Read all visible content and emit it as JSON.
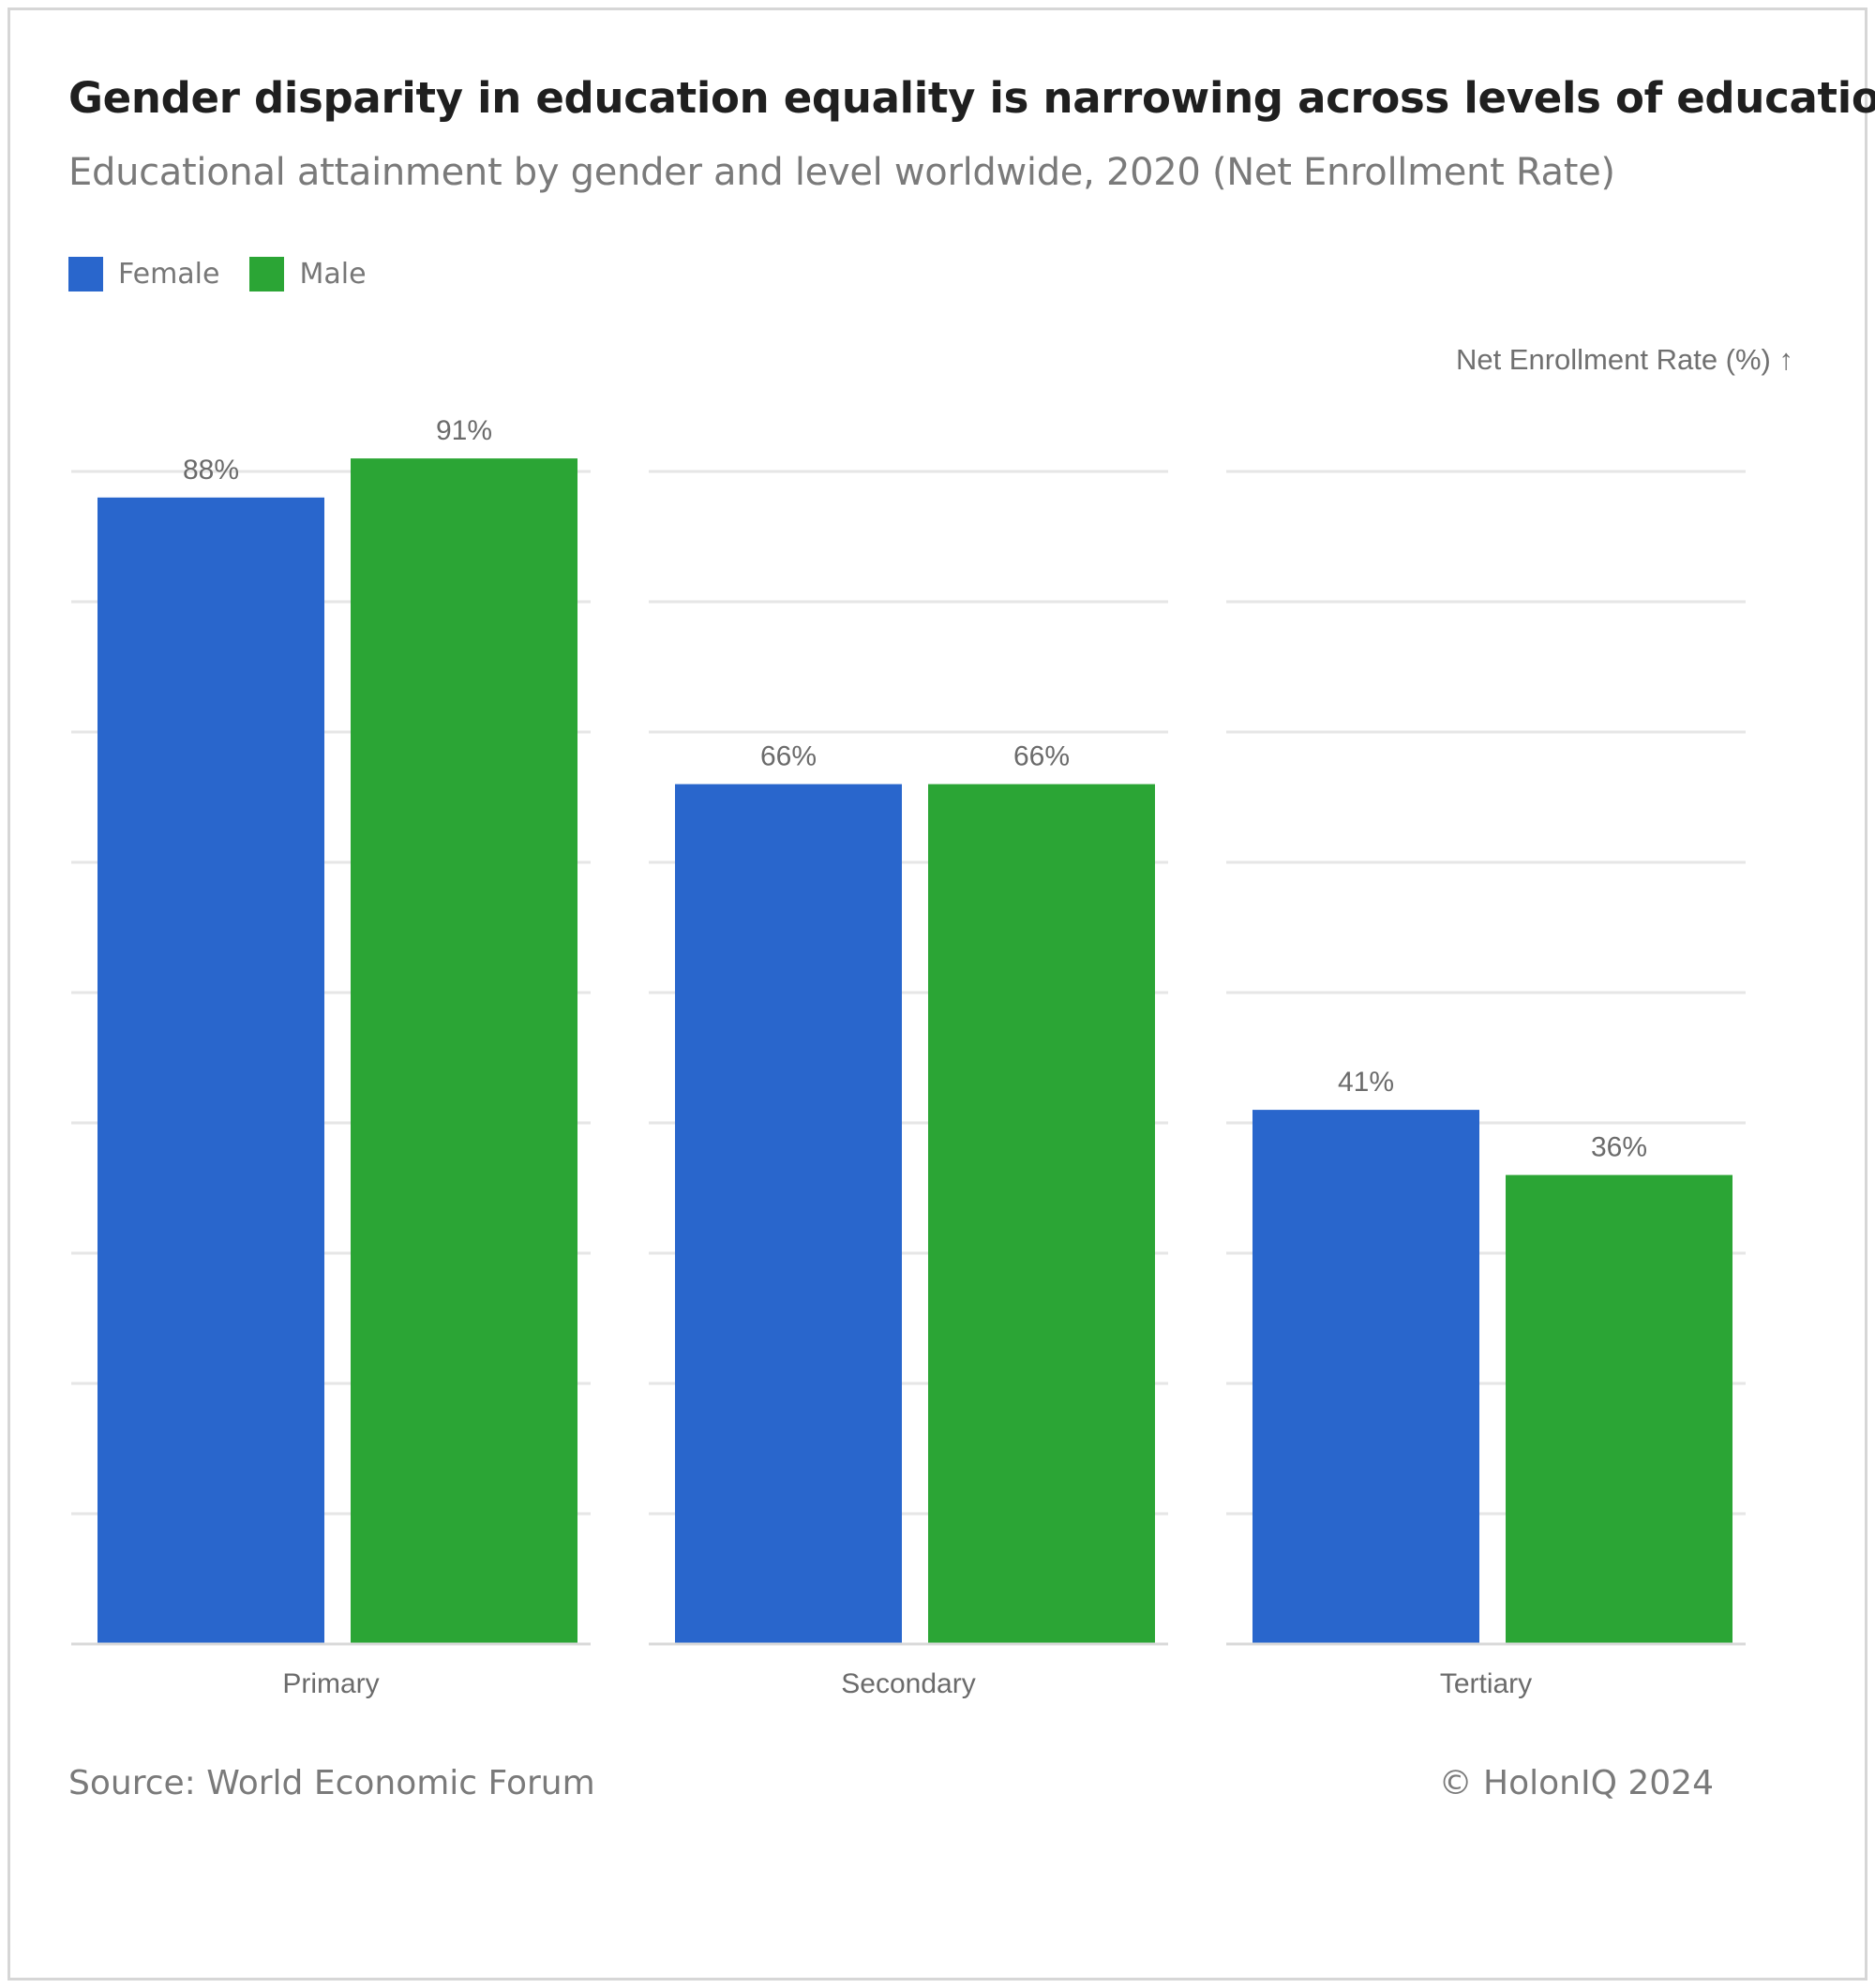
{
  "title": "Gender disparity in education equality is narrowing across levels of education",
  "subtitle": "Educational attainment by gender and level worldwide, 2020 (Net Enrollment Rate)",
  "legend": [
    {
      "label": "Female",
      "color": "#2966cc"
    },
    {
      "label": "Male",
      "color": "#2ba535"
    }
  ],
  "axis_unit_label": "Net Enrollment Rate (%) ↑",
  "source": "Source: World Economic Forum",
  "copyright": "© HolonIQ 2024",
  "chart_data": {
    "type": "bar",
    "categories": [
      "Primary",
      "Secondary",
      "Tertiary"
    ],
    "series": [
      {
        "name": "Female",
        "values": [
          88,
          66,
          41
        ],
        "labels": [
          "88%",
          "66%",
          "41%"
        ],
        "color": "#2966cc"
      },
      {
        "name": "Male",
        "values": [
          91,
          66,
          36
        ],
        "labels": [
          "91%",
          "66%",
          "36%"
        ],
        "color": "#2ba535"
      }
    ],
    "title": "Gender disparity in education equality is narrowing across levels of education",
    "subtitle": "Educational attainment by gender and level worldwide, 2020 (Net Enrollment Rate)",
    "xlabel": "",
    "ylabel": "Net Enrollment Rate (%)",
    "ylim": [
      0,
      90
    ],
    "grid": true,
    "legend_position": "top-left"
  }
}
